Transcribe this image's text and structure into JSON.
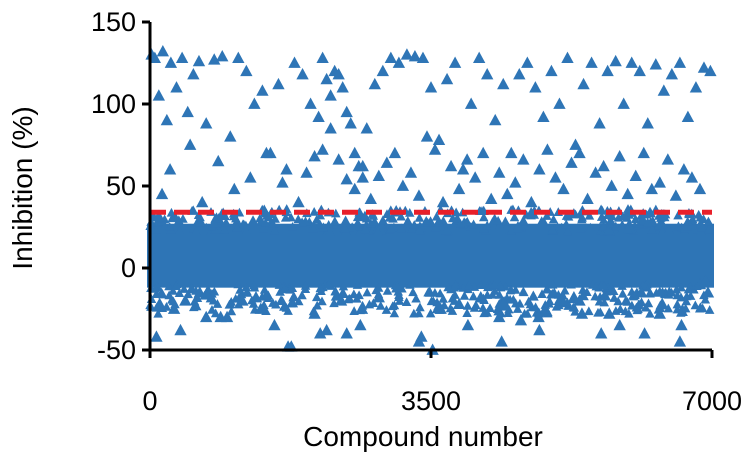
{
  "chart_data": {
    "type": "scatter",
    "title": "",
    "xlabel": "Compound number",
    "ylabel": "Inhibition (%)",
    "xlim": [
      0,
      7000
    ],
    "ylim": [
      -50,
      150
    ],
    "x_ticks": [
      0,
      3500,
      7000
    ],
    "x_tick_labels": [
      "0",
      "3500",
      "7000"
    ],
    "y_ticks": [
      -50,
      0,
      50,
      100,
      150
    ],
    "y_tick_labels": [
      "-50",
      "0",
      "50",
      "100",
      "150"
    ],
    "grid": false,
    "legend": "none",
    "marker": "triangle",
    "series_color": "#2e75b6",
    "threshold": {
      "y": 34,
      "style": "dashed",
      "color": "#e8202a"
    },
    "series": [
      {
        "x": [
          20,
          60,
          110,
          160,
          210,
          260,
          330,
          400,
          470,
          540,
          610,
          700,
          800,
          900,
          1000,
          1100,
          1200,
          1300,
          1400,
          1500,
          1600,
          1700,
          1800,
          1900,
          2000,
          2100,
          2150,
          2200,
          2250,
          2300,
          2350,
          2400,
          2450,
          2500,
          2550,
          2600,
          2650,
          2700,
          2800,
          2900,
          3000,
          3100,
          3200,
          3300,
          3400,
          3500,
          3600,
          3700,
          3800,
          3900,
          4000,
          4100,
          4200,
          4300,
          4400,
          4500,
          4600,
          4700,
          4800,
          4900,
          5000,
          5100,
          5200,
          5300,
          5400,
          5500,
          5600,
          5700,
          5800,
          5900,
          6000,
          6100,
          6200,
          6300,
          6400,
          6500,
          6600,
          6700,
          6800,
          6900,
          6980,
          150,
          250,
          500,
          650,
          850,
          1050,
          1250,
          1450,
          1650,
          1850,
          1950,
          2050,
          2150,
          2250,
          2350,
          2450,
          2550,
          2650,
          2750,
          2850,
          2950,
          3050,
          3150,
          3250,
          3350,
          3450,
          3550,
          3650,
          3750,
          3850,
          3950,
          4050,
          4150,
          4250,
          4350,
          4450,
          4550,
          4650,
          4750,
          4850,
          4950,
          5050,
          5150,
          5250,
          5350,
          5450,
          5550,
          5650,
          5750,
          5850,
          5950,
          6050,
          6150,
          6250,
          6350,
          6450,
          6550,
          6650,
          6750,
          6850,
          6950,
          300,
          700,
          1150,
          1550,
          2050,
          2450,
          2850,
          3350,
          3850,
          4350,
          4850,
          5350,
          5850,
          6350,
          6850,
          120,
          380,
          620,
          960,
          1380,
          1720,
          2120,
          2380,
          2620,
          3120,
          3380,
          3620,
          4120,
          4380,
          4620,
          5120,
          5380,
          5620,
          6120,
          6380,
          6620,
          6920,
          80,
          440,
          880,
          1320,
          1760,
          2200,
          2640,
          3080,
          3520,
          3960,
          4400,
          4840,
          5280,
          5720,
          6160,
          6600
        ],
        "y": [
          130,
          128,
          105,
          132,
          90,
          125,
          110,
          128,
          95,
          118,
          126,
          88,
          127,
          129,
          80,
          128,
          120,
          100,
          108,
          70,
          112,
          60,
          125,
          118,
          100,
          92,
          128,
          115,
          105,
          120,
          118,
          110,
          95,
          88,
          70,
          62,
          55,
          85,
          112,
          120,
          128,
          125,
          130,
          129,
          128,
          110,
          78,
          115,
          125,
          60,
          100,
          128,
          118,
          90,
          112,
          70,
          118,
          125,
          110,
          92,
          120,
          100,
          128,
          75,
          112,
          125,
          88,
          120,
          126,
          100,
          125,
          120,
          88,
          124,
          108,
          118,
          125,
          92,
          110,
          122,
          120,
          45,
          60,
          75,
          40,
          65,
          48,
          55,
          70,
          52,
          40,
          58,
          68,
          72,
          85,
          66,
          54,
          48,
          62,
          42,
          56,
          64,
          70,
          50,
          58,
          44,
          80,
          72,
          40,
          62,
          48,
          66,
          55,
          70,
          42,
          58,
          45,
          52,
          66,
          40,
          60,
          72,
          55,
          48,
          64,
          70,
          42,
          58,
          62,
          50,
          68,
          45,
          56,
          70,
          48,
          52,
          66,
          44,
          60,
          55,
          48,
          -15,
          -25,
          -30,
          -20,
          -35,
          -28,
          -40,
          -18,
          -45,
          -22,
          -30,
          -38,
          -20,
          -35,
          -28,
          -10,
          -22,
          -38,
          -15,
          -30,
          -25,
          -48,
          -40,
          -20,
          -35,
          -12,
          -42,
          -25,
          -18,
          -45,
          -32,
          -20,
          -28,
          -40,
          -15,
          -22,
          -35,
          -8,
          -42,
          -20,
          -30,
          -18,
          -48,
          -38,
          -25,
          -12,
          -50,
          -35,
          -22,
          -30,
          -18,
          -28,
          -40,
          -45
        ]
      }
    ]
  }
}
